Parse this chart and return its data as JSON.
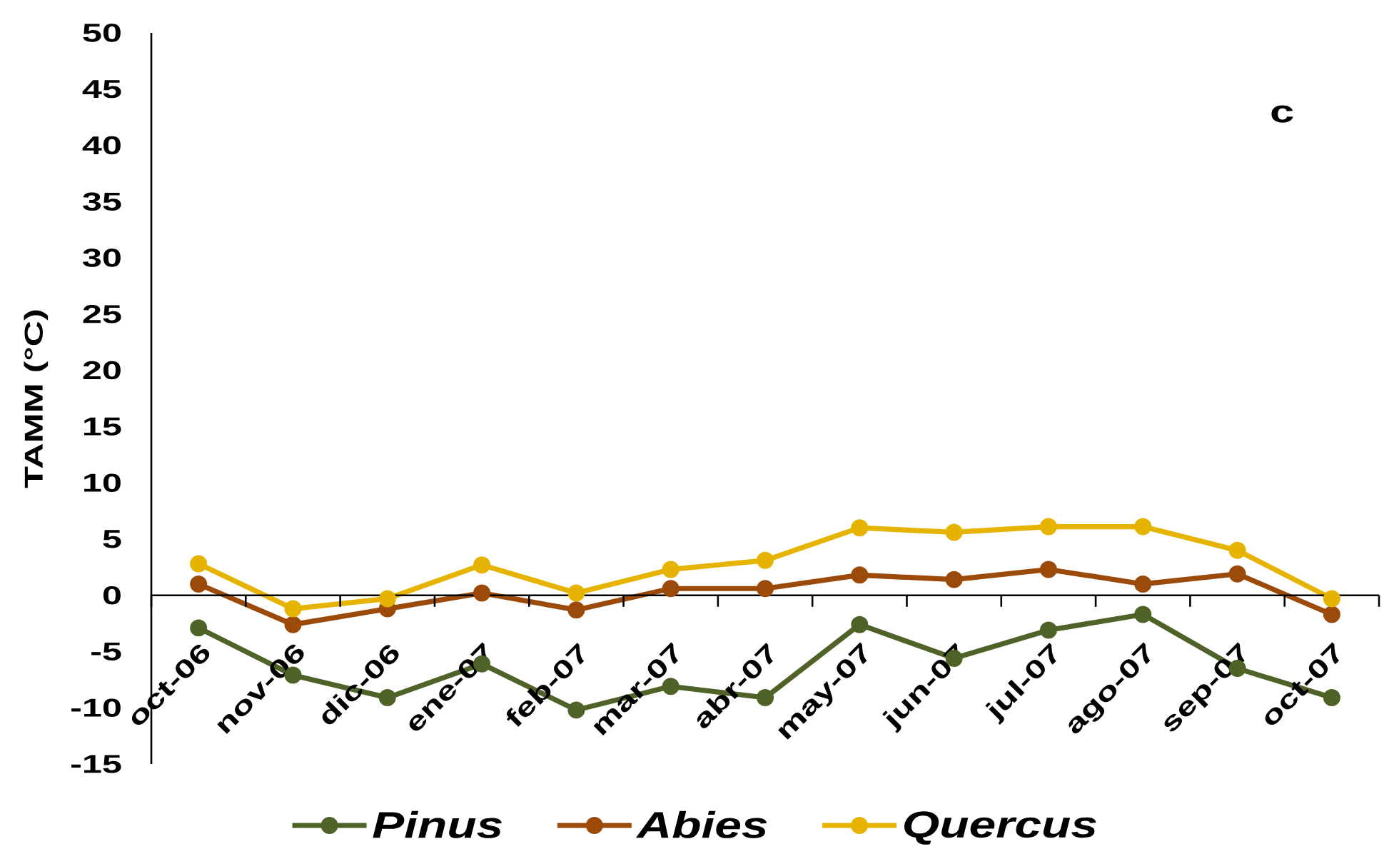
{
  "chart_data": {
    "type": "line",
    "ylabel": "TAMM (°C)",
    "annotations": [
      "c"
    ],
    "categories": [
      "oct-06",
      "nov-06",
      "dic-06",
      "ene-07",
      "feb-07",
      "mar-07",
      "abr-07",
      "may-07",
      "jun-07",
      "jul-07",
      "ago-07",
      "sep-07",
      "oct-07"
    ],
    "series": [
      {
        "name": "Pinus",
        "color": "#4f6228",
        "values": [
          -2.9,
          -7.1,
          -9.1,
          -6.1,
          -10.2,
          -8.1,
          -9.1,
          -2.6,
          -5.6,
          -3.1,
          -1.7,
          -6.5,
          -9.1
        ]
      },
      {
        "name": "Abies",
        "color": "#9c4a0a",
        "values": [
          1.0,
          -2.6,
          -1.2,
          0.2,
          -1.3,
          0.6,
          0.6,
          1.8,
          1.4,
          2.3,
          1.0,
          1.9,
          -1.7
        ]
      },
      {
        "name": "Quercus",
        "color": "#e6b400",
        "values": [
          2.8,
          -1.2,
          -0.3,
          2.7,
          0.2,
          2.3,
          3.1,
          6.0,
          5.6,
          6.1,
          6.1,
          4.0,
          -0.3
        ]
      }
    ],
    "ylim": [
      -15,
      50
    ],
    "yticks": [
      -15,
      -10,
      -5,
      0,
      5,
      10,
      15,
      20,
      25,
      30,
      35,
      40,
      45,
      50
    ],
    "legend": "bottom",
    "marker": "circle",
    "line_style": "solid"
  }
}
